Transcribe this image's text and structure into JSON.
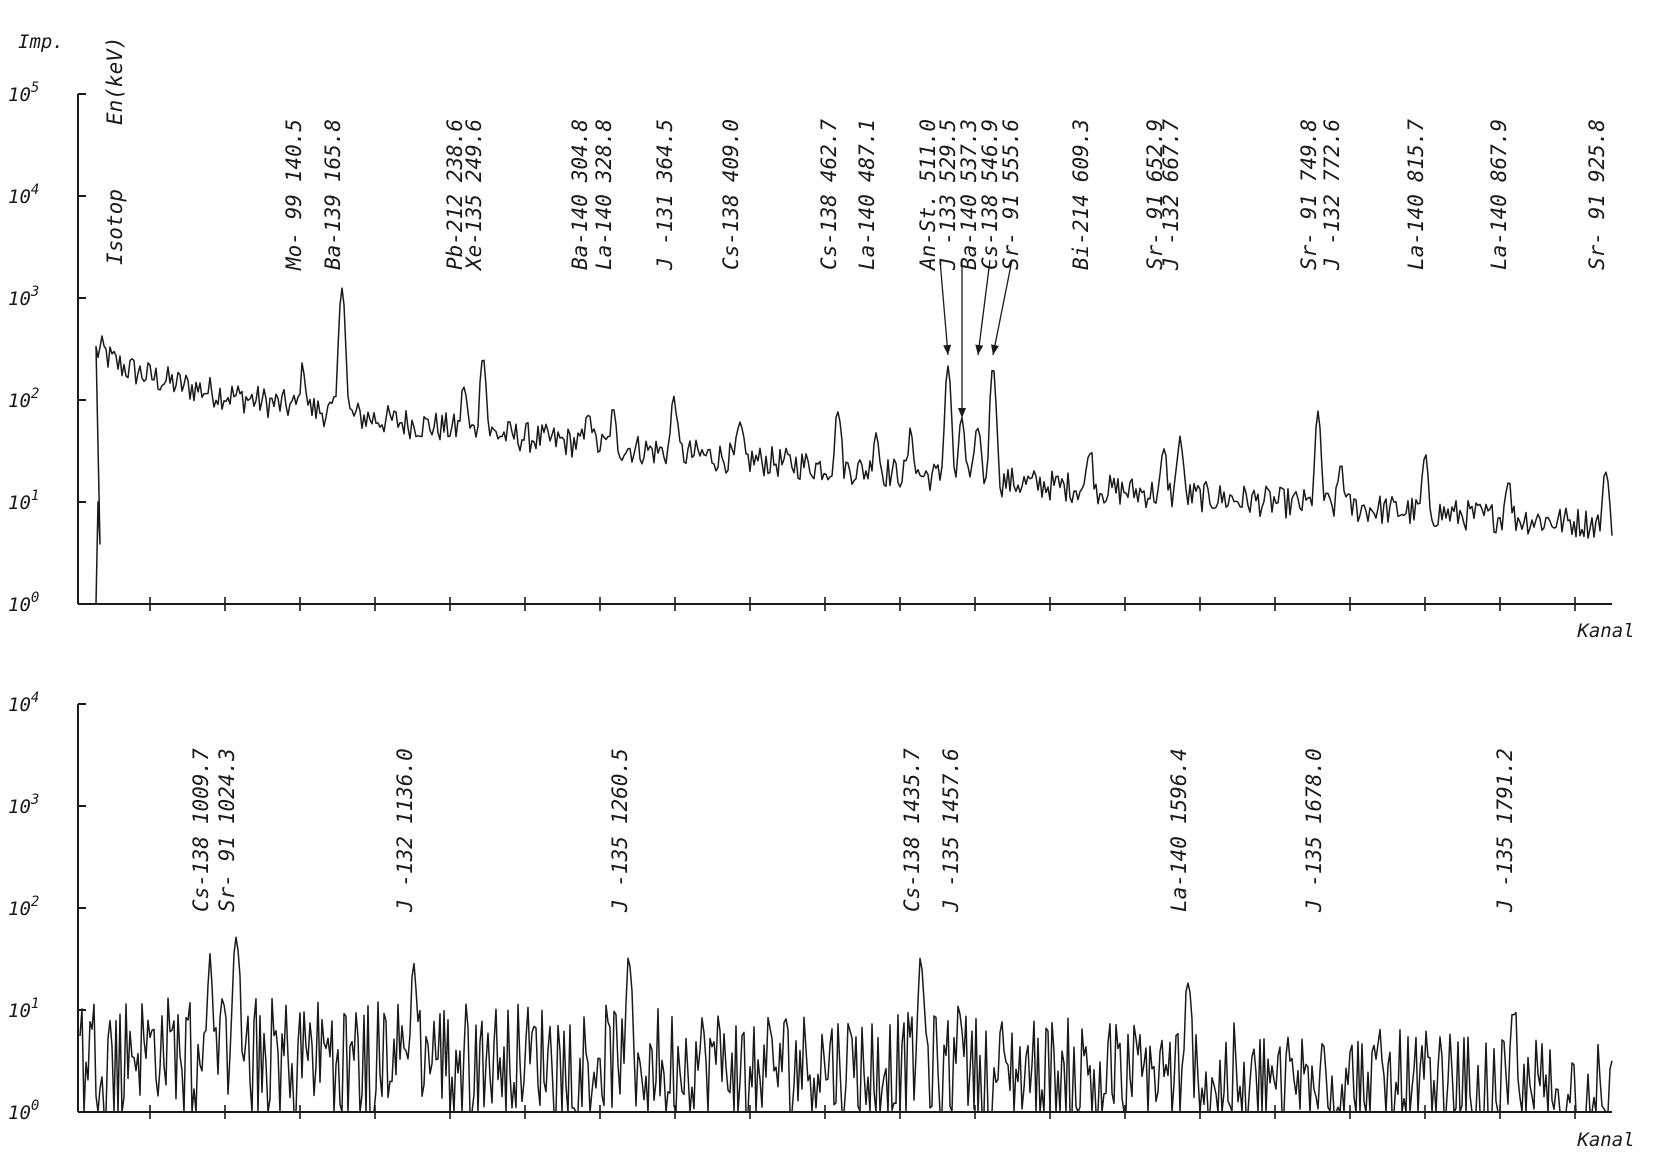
{
  "chart_data": [
    {
      "type": "line",
      "yscale": "log",
      "ylabel": "Imp.",
      "xlabel": "Kanal",
      "header_isotope": "Isotop",
      "header_energy": "En(keV)",
      "yticks": [
        {
          "exp": 0,
          "label": "10",
          "sup": "0"
        },
        {
          "exp": 1,
          "label": "10",
          "sup": "1"
        },
        {
          "exp": 2,
          "label": "10",
          "sup": "2"
        },
        {
          "exp": 3,
          "label": "10",
          "sup": "3"
        },
        {
          "exp": 4,
          "label": "10",
          "sup": "4"
        },
        {
          "exp": 5,
          "label": "10",
          "sup": "5"
        }
      ],
      "ylim": [
        1,
        100000
      ],
      "peaks": [
        {
          "isotope": "Mo- 99",
          "energy": "140.5",
          "height": 130
        },
        {
          "isotope": "Ba-139",
          "energy": "165.8",
          "height": 1200
        },
        {
          "isotope": "Pb-212",
          "energy": "238.6",
          "height": 90
        },
        {
          "isotope": "Xe-135",
          "energy": "249.6",
          "height": 230
        },
        {
          "isotope": "Ba-140",
          "energy": "304.8",
          "height": 45
        },
        {
          "isotope": "La-140",
          "energy": "328.8",
          "height": 40
        },
        {
          "isotope": "J -131",
          "energy": "364.5",
          "height": 80
        },
        {
          "isotope": "Cs-138",
          "energy": "409.0",
          "height": 30
        },
        {
          "isotope": "Cs-138",
          "energy": "462.7",
          "height": 60
        },
        {
          "isotope": "La-140",
          "energy": "487.1",
          "height": 30
        },
        {
          "isotope": "An-St.",
          "energy": "511.0",
          "height": 30
        },
        {
          "isotope": "J -133",
          "energy": "529.5",
          "height": 200
        },
        {
          "isotope": "Ba-140",
          "energy": "537.3",
          "height": 50
        },
        {
          "isotope": "Cs-138",
          "energy": "546.9",
          "height": 40
        },
        {
          "isotope": "Sr- 91",
          "energy": "555.6",
          "height": 200
        },
        {
          "isotope": "Bi-214",
          "energy": "609.3",
          "height": 20
        },
        {
          "isotope": "Sr- 91",
          "energy": "652.9",
          "height": 20
        },
        {
          "isotope": "J -132",
          "energy": "667.7",
          "height": 32
        },
        {
          "isotope": "Sr- 91",
          "energy": "749.8",
          "height": 65
        },
        {
          "isotope": "J -132",
          "energy": "772.6",
          "height": 15
        },
        {
          "isotope": "La-140",
          "energy": "815.7",
          "height": 20
        },
        {
          "isotope": "La-140",
          "energy": "867.9",
          "height": 10
        },
        {
          "isotope": "Sr- 91",
          "energy": "925.8",
          "height": 15
        }
      ]
    },
    {
      "type": "line",
      "yscale": "log",
      "xlabel": "Kanal",
      "yticks": [
        {
          "exp": 0,
          "label": "10",
          "sup": "0"
        },
        {
          "exp": 1,
          "label": "10",
          "sup": "1"
        },
        {
          "exp": 2,
          "label": "10",
          "sup": "2"
        },
        {
          "exp": 3,
          "label": "10",
          "sup": "3"
        },
        {
          "exp": 4,
          "label": "10",
          "sup": "4"
        }
      ],
      "ylim": [
        1,
        10000
      ],
      "peaks": [
        {
          "isotope": "Cs-138",
          "energy": "1009.7",
          "height": 25
        },
        {
          "isotope": "Sr- 91",
          "energy": "1024.3",
          "height": 50
        },
        {
          "isotope": "J -132",
          "energy": "1136.0",
          "height": 22
        },
        {
          "isotope": "J -135",
          "energy": "1260.5",
          "height": 23
        },
        {
          "isotope": "Cs-138",
          "energy": "1435.7",
          "height": 25
        },
        {
          "isotope": "J -135",
          "energy": "1457.6",
          "height": 8
        },
        {
          "isotope": "La-140",
          "energy": "1596.4",
          "height": 16
        },
        {
          "isotope": "J -135",
          "energy": "1678.0",
          "height": 4
        },
        {
          "isotope": "J -135",
          "energy": "1791.2",
          "height": 8
        }
      ]
    }
  ]
}
